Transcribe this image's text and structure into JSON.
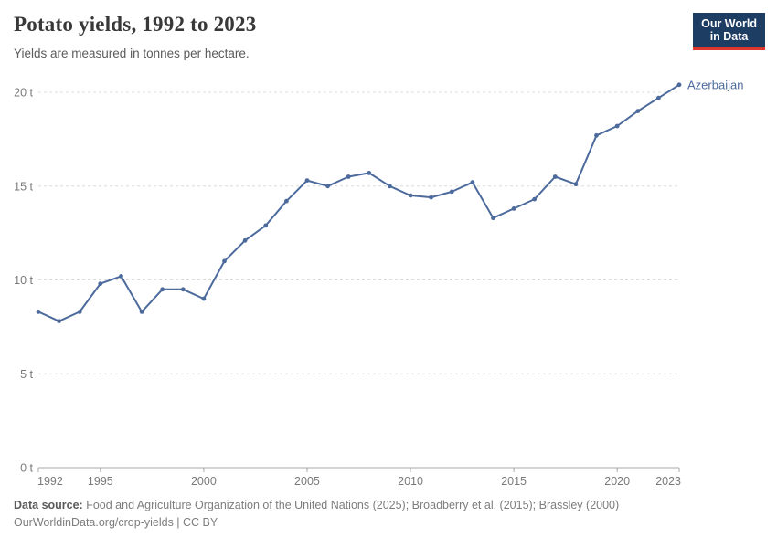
{
  "header": {
    "title": "Potato yields, 1992 to 2023",
    "subtitle": "Yields are measured in tonnes per hectare."
  },
  "logo": {
    "line1": "Our World",
    "line2": "in Data",
    "bg_color": "#1d3d63",
    "accent_color": "#e0362d"
  },
  "chart_data": {
    "type": "line",
    "title": "Potato yields, 1992 to 2023",
    "unit": "tonnes per hectare",
    "x": [
      1992,
      1993,
      1994,
      1995,
      1996,
      1997,
      1998,
      1999,
      2000,
      2001,
      2002,
      2003,
      2004,
      2005,
      2006,
      2007,
      2008,
      2009,
      2010,
      2011,
      2012,
      2013,
      2014,
      2015,
      2016,
      2017,
      2018,
      2019,
      2020,
      2021,
      2022,
      2023
    ],
    "series": [
      {
        "name": "Azerbaijan",
        "color": "#4c6a9c",
        "values": [
          8.3,
          7.8,
          8.3,
          9.8,
          10.2,
          8.3,
          9.5,
          9.5,
          9.0,
          11.0,
          12.1,
          12.9,
          14.2,
          15.3,
          15.0,
          15.5,
          15.7,
          15.0,
          14.5,
          14.4,
          14.7,
          15.2,
          13.3,
          13.8,
          14.3,
          15.5,
          15.1,
          17.7,
          18.2,
          19.0,
          19.7,
          20.4
        ]
      }
    ],
    "xlabel": "",
    "ylabel": "",
    "ylim": [
      0,
      20
    ],
    "yticks": [
      0,
      5,
      10,
      15,
      20
    ],
    "ytick_suffix": " t",
    "xticks": [
      1992,
      1995,
      2000,
      2005,
      2010,
      2015,
      2020,
      2023
    ],
    "grid": "horizontal-dashed",
    "legend": "end-of-line-label",
    "grid_color": "#dcdcdc",
    "axis_color": "#a9a9a9"
  },
  "footer": {
    "source_label": "Data source:",
    "source_text": " Food and Agriculture Organization of the United Nations (2025); Broadberry et al. (2015); Brassley (2000)",
    "license_line": "OurWorldinData.org/crop-yields | CC BY"
  }
}
